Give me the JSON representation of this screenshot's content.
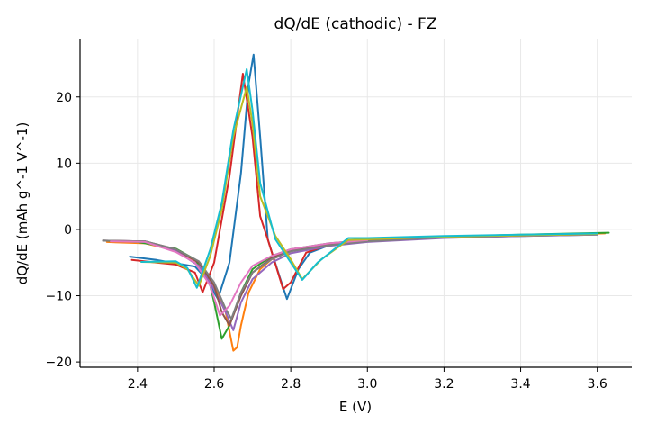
{
  "chart_data": {
    "type": "line",
    "title": "dQ/dE (cathodic) - FZ",
    "xlabel": "E (V)",
    "ylabel": "dQ/dE (mAh g^-1 V^-1)",
    "xlim": [
      2.25,
      3.69
    ],
    "ylim": [
      -20.8,
      28.8
    ],
    "xticks": [
      "2.4",
      "2.6",
      "2.8",
      "3.0",
      "3.2",
      "3.4",
      "3.6"
    ],
    "yticks": [
      "−20",
      "−10",
      "0",
      "10",
      "20"
    ],
    "grid": true,
    "legend": "none",
    "series": [
      {
        "color": "#1f77b4",
        "points": [
          [
            2.38,
            -4.1
          ],
          [
            2.45,
            -4.6
          ],
          [
            2.5,
            -5.1
          ],
          [
            2.55,
            -5.6
          ],
          [
            2.58,
            -7.5
          ],
          [
            2.61,
            -10.5
          ],
          [
            2.64,
            -5.0
          ],
          [
            2.67,
            8.5
          ],
          [
            2.69,
            22.0
          ],
          [
            2.703,
            26.4
          ],
          [
            2.72,
            14.0
          ],
          [
            2.74,
            -1.5
          ],
          [
            2.77,
            -7.0
          ],
          [
            2.79,
            -10.5
          ],
          [
            2.82,
            -6.0
          ],
          [
            2.85,
            -3.5
          ],
          [
            2.9,
            -2.4
          ],
          [
            3.0,
            -1.8
          ],
          [
            3.2,
            -1.2
          ],
          [
            3.4,
            -1.0
          ],
          [
            3.6,
            -0.8
          ]
        ]
      },
      {
        "color": "#ff7f0e",
        "points": [
          [
            2.32,
            -1.9
          ],
          [
            2.42,
            -2.1
          ],
          [
            2.5,
            -3.2
          ],
          [
            2.56,
            -5.0
          ],
          [
            2.6,
            -8.5
          ],
          [
            2.63,
            -12.5
          ],
          [
            2.65,
            -18.3
          ],
          [
            2.66,
            -17.8
          ],
          [
            2.67,
            -14.5
          ],
          [
            2.69,
            -9.5
          ],
          [
            2.72,
            -6.0
          ],
          [
            2.75,
            -4.5
          ],
          [
            2.8,
            -3.3
          ],
          [
            2.9,
            -2.2
          ],
          [
            3.0,
            -1.7
          ],
          [
            3.2,
            -1.2
          ],
          [
            3.4,
            -0.9
          ],
          [
            3.62,
            -0.6
          ]
        ]
      },
      {
        "color": "#2ca02c",
        "points": [
          [
            2.31,
            -1.7
          ],
          [
            2.4,
            -1.9
          ],
          [
            2.5,
            -2.9
          ],
          [
            2.55,
            -4.5
          ],
          [
            2.59,
            -8.5
          ],
          [
            2.6,
            -11.0
          ],
          [
            2.62,
            -16.5
          ],
          [
            2.64,
            -14.5
          ],
          [
            2.67,
            -9.5
          ],
          [
            2.7,
            -6.0
          ],
          [
            2.75,
            -4.0
          ],
          [
            2.8,
            -3.0
          ],
          [
            2.9,
            -2.1
          ],
          [
            3.0,
            -1.6
          ],
          [
            3.2,
            -1.1
          ],
          [
            3.4,
            -0.8
          ],
          [
            3.63,
            -0.5
          ]
        ]
      },
      {
        "color": "#d62728",
        "points": [
          [
            2.385,
            -4.6
          ],
          [
            2.45,
            -5.0
          ],
          [
            2.5,
            -5.3
          ],
          [
            2.55,
            -6.5
          ],
          [
            2.57,
            -9.5
          ],
          [
            2.6,
            -5.0
          ],
          [
            2.64,
            8.0
          ],
          [
            2.675,
            23.5
          ],
          [
            2.7,
            14.0
          ],
          [
            2.72,
            2.0
          ],
          [
            2.74,
            -1.5
          ],
          [
            2.78,
            -9.0
          ],
          [
            2.8,
            -8.0
          ],
          [
            2.84,
            -3.5
          ],
          [
            2.9,
            -2.3
          ],
          [
            3.0,
            -1.7
          ],
          [
            3.2,
            -1.2
          ],
          [
            3.4,
            -0.9
          ],
          [
            3.6,
            -0.7
          ]
        ]
      },
      {
        "color": "#9467bd",
        "points": [
          [
            2.31,
            -1.7
          ],
          [
            2.42,
            -1.8
          ],
          [
            2.5,
            -3.2
          ],
          [
            2.56,
            -5.5
          ],
          [
            2.6,
            -9.0
          ],
          [
            2.63,
            -12.5
          ],
          [
            2.65,
            -15.2
          ],
          [
            2.67,
            -11.0
          ],
          [
            2.7,
            -7.5
          ],
          [
            2.75,
            -5.0
          ],
          [
            2.8,
            -3.6
          ],
          [
            2.9,
            -2.5
          ],
          [
            3.0,
            -1.9
          ],
          [
            3.2,
            -1.3
          ],
          [
            3.4,
            -1.0
          ],
          [
            3.6,
            -0.8
          ]
        ]
      },
      {
        "color": "#8c564b",
        "points": [
          [
            2.31,
            -1.7
          ],
          [
            2.42,
            -1.8
          ],
          [
            2.5,
            -3.0
          ],
          [
            2.56,
            -5.0
          ],
          [
            2.6,
            -8.5
          ],
          [
            2.62,
            -12.5
          ],
          [
            2.64,
            -14.5
          ],
          [
            2.67,
            -10.0
          ],
          [
            2.7,
            -6.5
          ],
          [
            2.75,
            -4.3
          ],
          [
            2.8,
            -3.1
          ],
          [
            2.9,
            -2.2
          ],
          [
            3.0,
            -1.7
          ],
          [
            3.2,
            -1.2
          ],
          [
            3.4,
            -0.9
          ],
          [
            3.6,
            -0.7
          ]
        ]
      },
      {
        "color": "#7f7f7f",
        "points": [
          [
            2.31,
            -1.7
          ],
          [
            2.42,
            -1.8
          ],
          [
            2.5,
            -3.0
          ],
          [
            2.56,
            -4.8
          ],
          [
            2.6,
            -8.0
          ],
          [
            2.63,
            -12.0
          ],
          [
            2.645,
            -13.5
          ],
          [
            2.67,
            -9.5
          ],
          [
            2.7,
            -6.5
          ],
          [
            2.75,
            -4.5
          ],
          [
            2.8,
            -3.3
          ],
          [
            2.9,
            -2.4
          ],
          [
            3.0,
            -1.8
          ],
          [
            3.2,
            -1.2
          ],
          [
            3.4,
            -0.9
          ],
          [
            3.6,
            -0.7
          ]
        ]
      },
      {
        "color": "#e377c2",
        "points": [
          [
            2.33,
            -1.8
          ],
          [
            2.42,
            -1.9
          ],
          [
            2.5,
            -3.4
          ],
          [
            2.55,
            -5.0
          ],
          [
            2.59,
            -8.5
          ],
          [
            2.615,
            -13.0
          ],
          [
            2.64,
            -11.5
          ],
          [
            2.67,
            -8.0
          ],
          [
            2.7,
            -5.5
          ],
          [
            2.75,
            -4.0
          ],
          [
            2.8,
            -3.0
          ],
          [
            2.9,
            -2.1
          ],
          [
            3.0,
            -1.6
          ]
        ]
      },
      {
        "color": "#bcbd22",
        "points": [
          [
            2.41,
            -4.9
          ],
          [
            2.5,
            -5.0
          ],
          [
            2.53,
            -6.0
          ],
          [
            2.56,
            -8.5
          ],
          [
            2.59,
            -4.0
          ],
          [
            2.62,
            3.0
          ],
          [
            2.65,
            14.0
          ],
          [
            2.685,
            21.5
          ],
          [
            2.7,
            16.0
          ],
          [
            2.72,
            5.0
          ],
          [
            2.76,
            -1.0
          ],
          [
            2.8,
            -4.5
          ],
          [
            2.83,
            -7.5
          ],
          [
            2.88,
            -4.5
          ],
          [
            2.95,
            -1.6
          ],
          [
            3.0,
            -1.5
          ],
          [
            3.2,
            -1.1
          ],
          [
            3.4,
            -0.9
          ],
          [
            3.6,
            -0.7
          ]
        ]
      },
      {
        "color": "#17becf",
        "points": [
          [
            2.41,
            -4.9
          ],
          [
            2.5,
            -4.8
          ],
          [
            2.53,
            -5.8
          ],
          [
            2.555,
            -8.8
          ],
          [
            2.59,
            -3.0
          ],
          [
            2.62,
            4.0
          ],
          [
            2.65,
            15.0
          ],
          [
            2.685,
            24.2
          ],
          [
            2.7,
            18.0
          ],
          [
            2.72,
            7.0
          ],
          [
            2.76,
            -1.5
          ],
          [
            2.8,
            -5.0
          ],
          [
            2.83,
            -7.6
          ],
          [
            2.87,
            -5.0
          ],
          [
            2.95,
            -1.3
          ],
          [
            3.0,
            -1.3
          ],
          [
            3.2,
            -1.0
          ],
          [
            3.4,
            -0.8
          ],
          [
            3.6,
            -0.6
          ]
        ]
      }
    ]
  }
}
